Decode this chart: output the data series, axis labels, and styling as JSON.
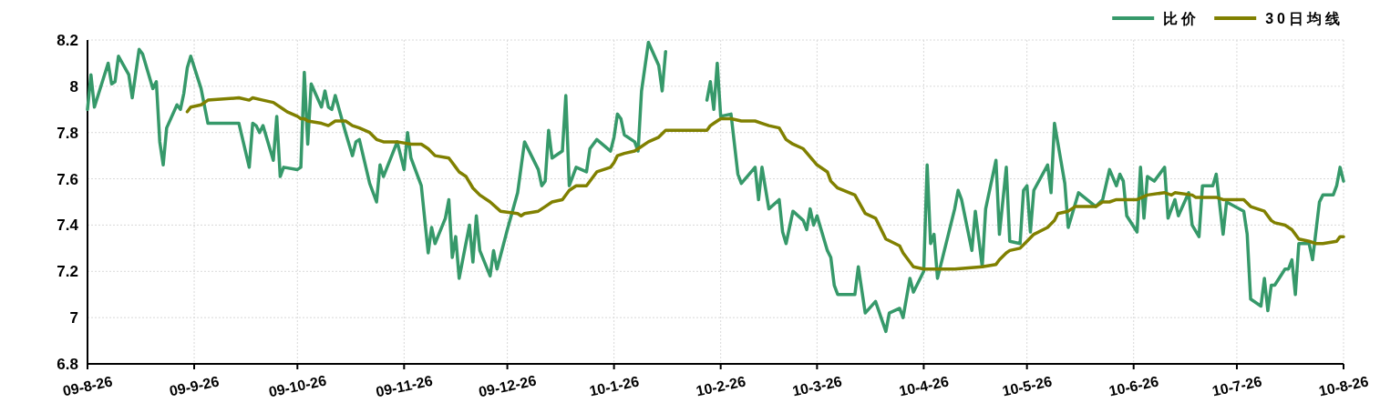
{
  "chart_data": {
    "type": "line",
    "xlim": [
      "2009-08-26",
      "2010-08-26"
    ],
    "xticks": [
      {
        "value": "2009-08-26",
        "label": "09-8-26"
      },
      {
        "value": "2009-09-26",
        "label": "09-9-26"
      },
      {
        "value": "2009-10-26",
        "label": "09-10-26"
      },
      {
        "value": "2009-11-26",
        "label": "09-11-26"
      },
      {
        "value": "2009-12-26",
        "label": "09-12-26"
      },
      {
        "value": "2010-01-26",
        "label": "10-1-26"
      },
      {
        "value": "2010-02-26",
        "label": "10-2-26"
      },
      {
        "value": "2010-03-26",
        "label": "10-3-26"
      },
      {
        "value": "2010-04-26",
        "label": "10-4-26"
      },
      {
        "value": "2010-05-26",
        "label": "10-5-26"
      },
      {
        "value": "2010-06-26",
        "label": "10-6-26"
      },
      {
        "value": "2010-07-26",
        "label": "10-7-26"
      },
      {
        "value": "2010-08-26",
        "label": "10-8-26"
      }
    ],
    "ylim": [
      6.8,
      8.2
    ],
    "yticks": [
      6.8,
      7,
      7.2,
      7.4,
      7.6,
      7.8,
      8,
      8.2
    ],
    "grid": true,
    "legend": "top right",
    "line_style": "solid",
    "marker": "none",
    "series": [
      {
        "name": "比价",
        "color": "#36996a",
        "x": [
          "2009-08-26",
          "2009-08-27",
          "2009-08-28",
          "2009-09-01",
          "2009-09-02",
          "2009-09-03",
          "2009-09-04",
          "2009-09-07",
          "2009-09-08",
          "2009-09-10",
          "2009-09-11",
          "2009-09-14",
          "2009-09-15",
          "2009-09-16",
          "2009-09-17",
          "2009-09-18",
          "2009-09-21",
          "2009-09-22",
          "2009-09-23",
          "2009-09-24",
          "2009-09-25",
          "2009-09-28",
          "2009-09-30",
          "2009-10-09",
          "2009-10-12",
          "2009-10-13",
          "2009-10-14",
          "2009-10-15",
          "2009-10-16",
          "2009-10-19",
          "2009-10-20",
          "2009-10-21",
          "2009-10-22",
          "2009-10-26",
          "2009-10-27",
          "2009-10-28",
          "2009-10-29",
          "2009-10-30",
          "2009-11-02",
          "2009-11-03",
          "2009-11-04",
          "2009-11-05",
          "2009-11-06",
          "2009-11-09",
          "2009-11-11",
          "2009-11-12",
          "2009-11-13",
          "2009-11-16",
          "2009-11-18",
          "2009-11-19",
          "2009-11-20",
          "2009-11-24",
          "2009-11-26",
          "2009-11-27",
          "2009-11-28",
          "2009-12-01",
          "2009-12-03",
          "2009-12-04",
          "2009-12-05",
          "2009-12-08",
          "2009-12-09",
          "2009-12-10",
          "2009-12-11",
          "2009-12-12",
          "2009-12-15",
          "2009-12-16",
          "2009-12-17",
          "2009-12-18",
          "2009-12-21",
          "2009-12-22",
          "2009-12-23",
          "2009-12-26",
          "2009-12-29",
          "2009-12-31",
          "2010-01-04",
          "2010-01-05",
          "2010-01-06",
          "2010-01-07",
          "2010-01-08",
          "2010-01-11",
          "2010-01-12",
          "2010-01-13",
          "2010-01-15",
          "2010-01-18",
          "2010-01-19",
          "2010-01-21",
          "2010-01-25",
          "2010-01-26",
          "2010-01-27",
          "2010-01-28",
          "2010-01-29",
          "2010-02-01",
          "2010-02-02",
          "2010-02-03",
          "2010-02-05",
          "2010-02-08",
          "2010-02-09",
          "2010-02-10",
          "2010-02-16",
          "2010-02-22",
          "2010-02-23",
          "2010-02-24",
          "2010-02-25",
          "2010-02-26",
          "2010-03-01",
          "2010-03-03",
          "2010-03-04",
          "2010-03-08",
          "2010-03-09",
          "2010-03-10",
          "2010-03-12",
          "2010-03-15",
          "2010-03-16",
          "2010-03-17",
          "2010-03-19",
          "2010-03-22",
          "2010-03-23",
          "2010-03-24",
          "2010-03-25",
          "2010-03-26",
          "2010-03-29",
          "2010-03-30",
          "2010-03-31",
          "2010-04-01",
          "2010-04-06",
          "2010-04-07",
          "2010-04-09",
          "2010-04-12",
          "2010-04-15",
          "2010-04-16",
          "2010-04-19",
          "2010-04-20",
          "2010-04-22",
          "2010-04-23",
          "2010-04-26",
          "2010-04-27",
          "2010-04-28",
          "2010-04-29",
          "2010-04-30",
          "2010-05-05",
          "2010-05-06",
          "2010-05-07",
          "2010-05-10",
          "2010-05-11",
          "2010-05-13",
          "2010-05-14",
          "2010-05-17",
          "2010-05-18",
          "2010-05-20",
          "2010-05-21",
          "2010-05-24",
          "2010-05-25",
          "2010-05-26",
          "2010-05-27",
          "2010-05-28",
          "2010-06-01",
          "2010-06-02",
          "2010-06-03",
          "2010-06-06",
          "2010-06-07",
          "2010-06-10",
          "2010-06-15",
          "2010-06-17",
          "2010-06-19",
          "2010-06-21",
          "2010-06-22",
          "2010-06-23",
          "2010-06-24",
          "2010-06-27",
          "2010-06-28",
          "2010-06-29",
          "2010-06-30",
          "2010-07-02",
          "2010-07-05",
          "2010-07-06",
          "2010-07-08",
          "2010-07-09",
          "2010-07-12",
          "2010-07-13",
          "2010-07-15",
          "2010-07-16",
          "2010-07-19",
          "2010-07-20",
          "2010-07-22",
          "2010-07-23",
          "2010-07-28",
          "2010-07-29",
          "2010-07-30",
          "2010-08-02",
          "2010-08-03",
          "2010-08-04",
          "2010-08-05",
          "2010-08-06",
          "2010-08-09",
          "2010-08-10",
          "2010-08-11",
          "2010-08-12",
          "2010-08-13",
          "2010-08-16",
          "2010-08-17",
          "2010-08-19",
          "2010-08-20",
          "2010-08-23",
          "2010-08-24",
          "2010-08-25",
          "2010-08-26"
        ],
        "values": [
          7.9,
          8.05,
          7.91,
          8.1,
          8.01,
          8.02,
          8.13,
          8.05,
          7.95,
          8.16,
          8.14,
          7.99,
          8.02,
          7.76,
          7.66,
          7.82,
          7.92,
          7.9,
          7.97,
          8.08,
          8.13,
          7.99,
          7.84,
          7.84,
          7.65,
          7.84,
          7.83,
          7.8,
          7.83,
          7.68,
          7.87,
          7.61,
          7.65,
          7.64,
          7.65,
          8.06,
          7.75,
          8.01,
          7.91,
          7.98,
          7.91,
          7.9,
          7.96,
          7.8,
          7.7,
          7.76,
          7.77,
          7.58,
          7.5,
          7.66,
          7.61,
          7.76,
          7.64,
          7.8,
          7.69,
          7.57,
          7.28,
          7.39,
          7.32,
          7.43,
          7.51,
          7.26,
          7.35,
          7.17,
          7.4,
          7.24,
          7.44,
          7.29,
          7.18,
          7.29,
          7.21,
          7.38,
          7.54,
          7.76,
          7.64,
          7.57,
          7.59,
          7.81,
          7.69,
          7.72,
          7.96,
          7.57,
          7.65,
          7.63,
          7.73,
          7.77,
          7.72,
          7.78,
          7.88,
          7.86,
          7.79,
          7.76,
          7.72,
          7.98,
          8.19,
          8.09,
          7.98,
          8.15,
          null,
          7.94,
          8.02,
          7.9,
          8.1,
          7.87,
          7.88,
          7.62,
          7.58,
          7.65,
          7.51,
          7.65,
          7.47,
          7.51,
          7.37,
          7.32,
          7.46,
          7.42,
          7.38,
          7.47,
          7.4,
          7.44,
          7.29,
          7.26,
          7.14,
          7.1,
          7.1,
          7.22,
          7.02,
          7.07,
          6.94,
          7.02,
          7.04,
          7.0,
          7.17,
          7.11,
          7.2,
          7.66,
          7.32,
          7.36,
          7.17,
          7.47,
          7.55,
          7.51,
          7.29,
          7.46,
          7.22,
          7.47,
          7.68,
          7.36,
          7.65,
          7.33,
          7.32,
          7.55,
          7.57,
          7.37,
          7.55,
          7.66,
          7.54,
          7.84,
          7.58,
          7.39,
          7.54,
          7.48,
          7.51,
          7.64,
          7.57,
          7.62,
          7.59,
          7.44,
          7.37,
          7.65,
          7.43,
          7.61,
          7.59,
          7.65,
          7.43,
          7.51,
          7.44,
          7.54,
          7.4,
          7.35,
          7.57,
          7.57,
          7.62,
          7.36,
          7.5,
          7.46,
          7.36,
          7.08,
          7.05,
          7.17,
          7.03,
          7.14,
          7.14,
          7.21,
          7.21,
          7.25,
          7.1,
          7.32,
          7.32,
          7.25,
          7.5,
          7.53,
          7.53,
          7.57,
          7.65,
          7.59
        ]
      },
      {
        "name": "30日均线",
        "color": "#808000",
        "x": [
          "2009-09-24",
          "2009-09-25",
          "2009-09-28",
          "2009-09-30",
          "2009-10-09",
          "2009-10-12",
          "2009-10-13",
          "2009-10-16",
          "2009-10-19",
          "2009-10-22",
          "2009-10-23",
          "2009-10-26",
          "2009-10-27",
          "2009-10-28",
          "2009-10-29",
          "2009-11-02",
          "2009-11-04",
          "2009-11-06",
          "2009-11-09",
          "2009-11-11",
          "2009-11-13",
          "2009-11-16",
          "2009-11-18",
          "2009-11-20",
          "2009-11-24",
          "2009-11-28",
          "2009-12-01",
          "2009-12-03",
          "2009-12-05",
          "2009-12-09",
          "2009-12-10",
          "2009-12-11",
          "2009-12-12",
          "2009-12-14",
          "2009-12-16",
          "2009-12-18",
          "2009-12-21",
          "2009-12-24",
          "2009-12-29",
          "2009-12-30",
          "2009-12-31",
          "2010-01-04",
          "2010-01-06",
          "2010-01-08",
          "2010-01-11",
          "2010-01-13",
          "2010-01-15",
          "2010-01-18",
          "2010-01-21",
          "2010-01-25",
          "2010-01-26",
          "2010-01-27",
          "2010-01-29",
          "2010-02-01",
          "2010-02-03",
          "2010-02-05",
          "2010-02-08",
          "2010-02-10",
          "2010-02-22",
          "2010-02-23",
          "2010-02-24",
          "2010-02-26",
          "2010-03-01",
          "2010-03-04",
          "2010-03-08",
          "2010-03-10",
          "2010-03-12",
          "2010-03-15",
          "2010-03-17",
          "2010-03-19",
          "2010-03-22",
          "2010-03-26",
          "2010-03-29",
          "2010-03-30",
          "2010-04-01",
          "2010-04-06",
          "2010-04-09",
          "2010-04-12",
          "2010-04-15",
          "2010-04-19",
          "2010-04-20",
          "2010-04-23",
          "2010-04-26",
          "2010-04-30",
          "2010-05-05",
          "2010-05-13",
          "2010-05-17",
          "2010-05-18",
          "2010-05-20",
          "2010-05-21",
          "2010-05-24",
          "2010-05-26",
          "2010-05-28",
          "2010-06-01",
          "2010-06-03",
          "2010-06-04",
          "2010-06-07",
          "2010-06-09",
          "2010-06-14",
          "2010-06-15",
          "2010-06-17",
          "2010-06-19",
          "2010-06-21",
          "2010-06-27",
          "2010-06-30",
          "2010-07-05",
          "2010-07-07",
          "2010-07-08",
          "2010-07-13",
          "2010-07-14",
          "2010-07-20",
          "2010-07-22",
          "2010-07-28",
          "2010-07-30",
          "2010-08-03",
          "2010-08-05",
          "2010-08-06",
          "2010-08-09",
          "2010-08-11",
          "2010-08-13",
          "2010-08-16",
          "2010-08-18",
          "2010-08-20",
          "2010-08-24",
          "2010-08-25",
          "2010-08-26"
        ],
        "values": [
          7.89,
          7.91,
          7.92,
          7.94,
          7.95,
          7.94,
          7.95,
          7.94,
          7.93,
          7.9,
          7.89,
          7.87,
          7.86,
          7.86,
          7.85,
          7.84,
          7.83,
          7.85,
          7.85,
          7.83,
          7.82,
          7.8,
          7.77,
          7.76,
          7.76,
          7.75,
          7.75,
          7.73,
          7.7,
          7.69,
          7.67,
          7.65,
          7.63,
          7.61,
          7.56,
          7.53,
          7.5,
          7.46,
          7.45,
          7.44,
          7.45,
          7.46,
          7.48,
          7.5,
          7.51,
          7.55,
          7.57,
          7.57,
          7.63,
          7.65,
          7.67,
          7.7,
          7.71,
          7.72,
          7.74,
          7.76,
          7.78,
          7.81,
          7.81,
          7.83,
          7.84,
          7.86,
          7.86,
          7.85,
          7.85,
          7.84,
          7.83,
          7.82,
          7.77,
          7.75,
          7.73,
          7.66,
          7.63,
          7.59,
          7.56,
          7.53,
          7.45,
          7.43,
          7.34,
          7.31,
          7.28,
          7.22,
          7.21,
          7.21,
          7.21,
          7.22,
          7.23,
          7.25,
          7.28,
          7.29,
          7.3,
          7.33,
          7.36,
          7.39,
          7.42,
          7.45,
          7.46,
          7.48,
          7.48,
          7.48,
          7.5,
          7.5,
          7.51,
          7.51,
          7.53,
          7.54,
          7.53,
          7.54,
          7.53,
          7.52,
          7.52,
          7.51,
          7.51,
          7.48,
          7.46,
          7.42,
          7.41,
          7.4,
          7.38,
          7.34,
          7.33,
          7.32,
          7.32,
          7.33,
          7.35,
          7.35
        ]
      }
    ]
  }
}
